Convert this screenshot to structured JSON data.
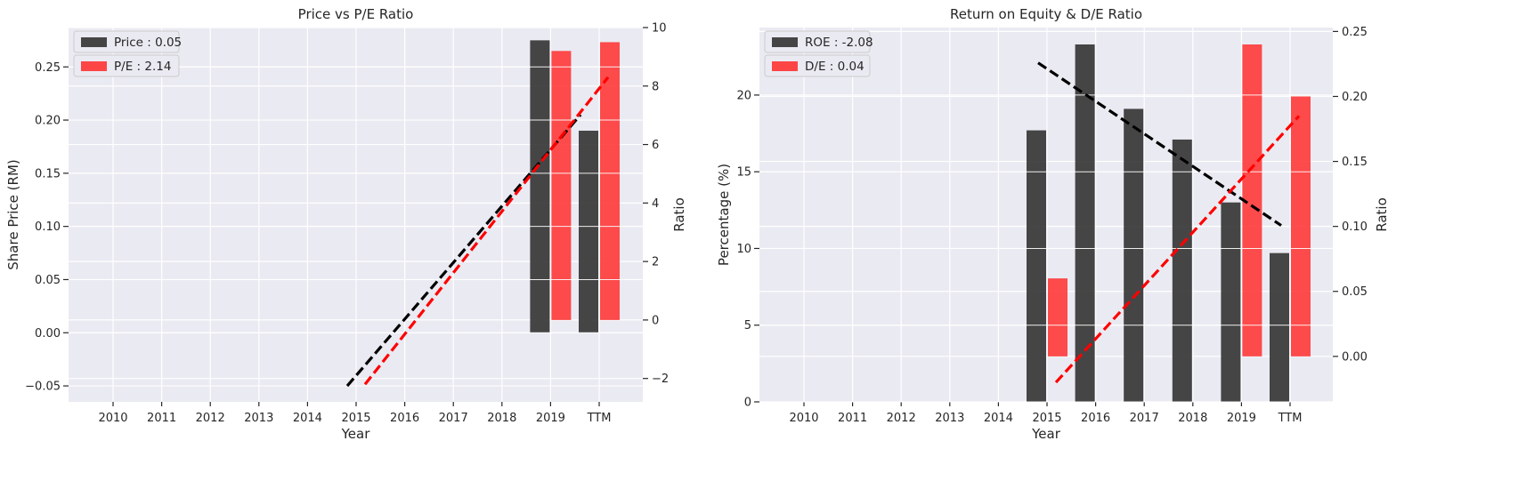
{
  "chart_data": [
    {
      "type": "bar",
      "title": "Price vs P/E Ratio",
      "xlabel": "Year",
      "ylabel": "Share Price (RM)",
      "y2label": "Ratio",
      "categories": [
        "2010",
        "2011",
        "2012",
        "2013",
        "2014",
        "2015",
        "2016",
        "2017",
        "2018",
        "2019",
        "TTM"
      ],
      "ylim": [
        -0.065,
        0.287
      ],
      "y2lim": [
        -2.8,
        10.0
      ],
      "yticks": [
        "−0.05",
        "0.00",
        "0.05",
        "0.10",
        "0.15",
        "0.20",
        "0.25"
      ],
      "y2ticks": [
        "−2",
        "0",
        "2",
        "4",
        "6",
        "8",
        "10"
      ],
      "series": [
        {
          "name": "Price : 0.05",
          "axis": "left",
          "color": "#333333",
          "values": [
            null,
            null,
            null,
            null,
            null,
            null,
            null,
            null,
            null,
            0.275,
            0.19
          ],
          "trend": [
            [
              5,
              -0.05
            ],
            [
              9.8,
              0.205
            ]
          ]
        },
        {
          "name": "P/E : 2.14",
          "axis": "right",
          "color": "#ff3333",
          "values": [
            null,
            null,
            null,
            null,
            null,
            null,
            null,
            null,
            null,
            9.2,
            9.5
          ],
          "trend": [
            [
              5,
              -2.2
            ],
            [
              10,
              8.3
            ]
          ]
        }
      ],
      "legend": "top-left",
      "grid": true
    },
    {
      "type": "bar",
      "title": "Return on Equity & D/E Ratio",
      "xlabel": "Year",
      "ylabel": "Percentage (%)",
      "y2label": "Ratio",
      "categories": [
        "2010",
        "2011",
        "2012",
        "2013",
        "2014",
        "2015",
        "2016",
        "2017",
        "2018",
        "2019",
        "TTM"
      ],
      "ylim": [
        0,
        24.4
      ],
      "y2lim": [
        -0.035,
        0.253
      ],
      "yticks": [
        "0",
        "5",
        "10",
        "15",
        "20"
      ],
      "y2ticks": [
        "0.00",
        "0.05",
        "0.10",
        "0.15",
        "0.20",
        "0.25"
      ],
      "series": [
        {
          "name": "ROE : -2.08",
          "axis": "left",
          "color": "#333333",
          "values": [
            null,
            null,
            null,
            null,
            null,
            17.7,
            23.3,
            19.1,
            17.1,
            13.0,
            9.7
          ],
          "trend": [
            [
              5,
              22.1
            ],
            [
              10,
              11.5
            ]
          ]
        },
        {
          "name": "D/E : 0.04",
          "axis": "right",
          "color": "#ff3333",
          "values": [
            null,
            null,
            null,
            null,
            null,
            0.06,
            null,
            null,
            null,
            0.24,
            0.2
          ],
          "trend": [
            [
              5,
              -0.02
            ],
            [
              10,
              0.185
            ]
          ]
        }
      ],
      "legend": "top-left",
      "grid": true
    }
  ]
}
